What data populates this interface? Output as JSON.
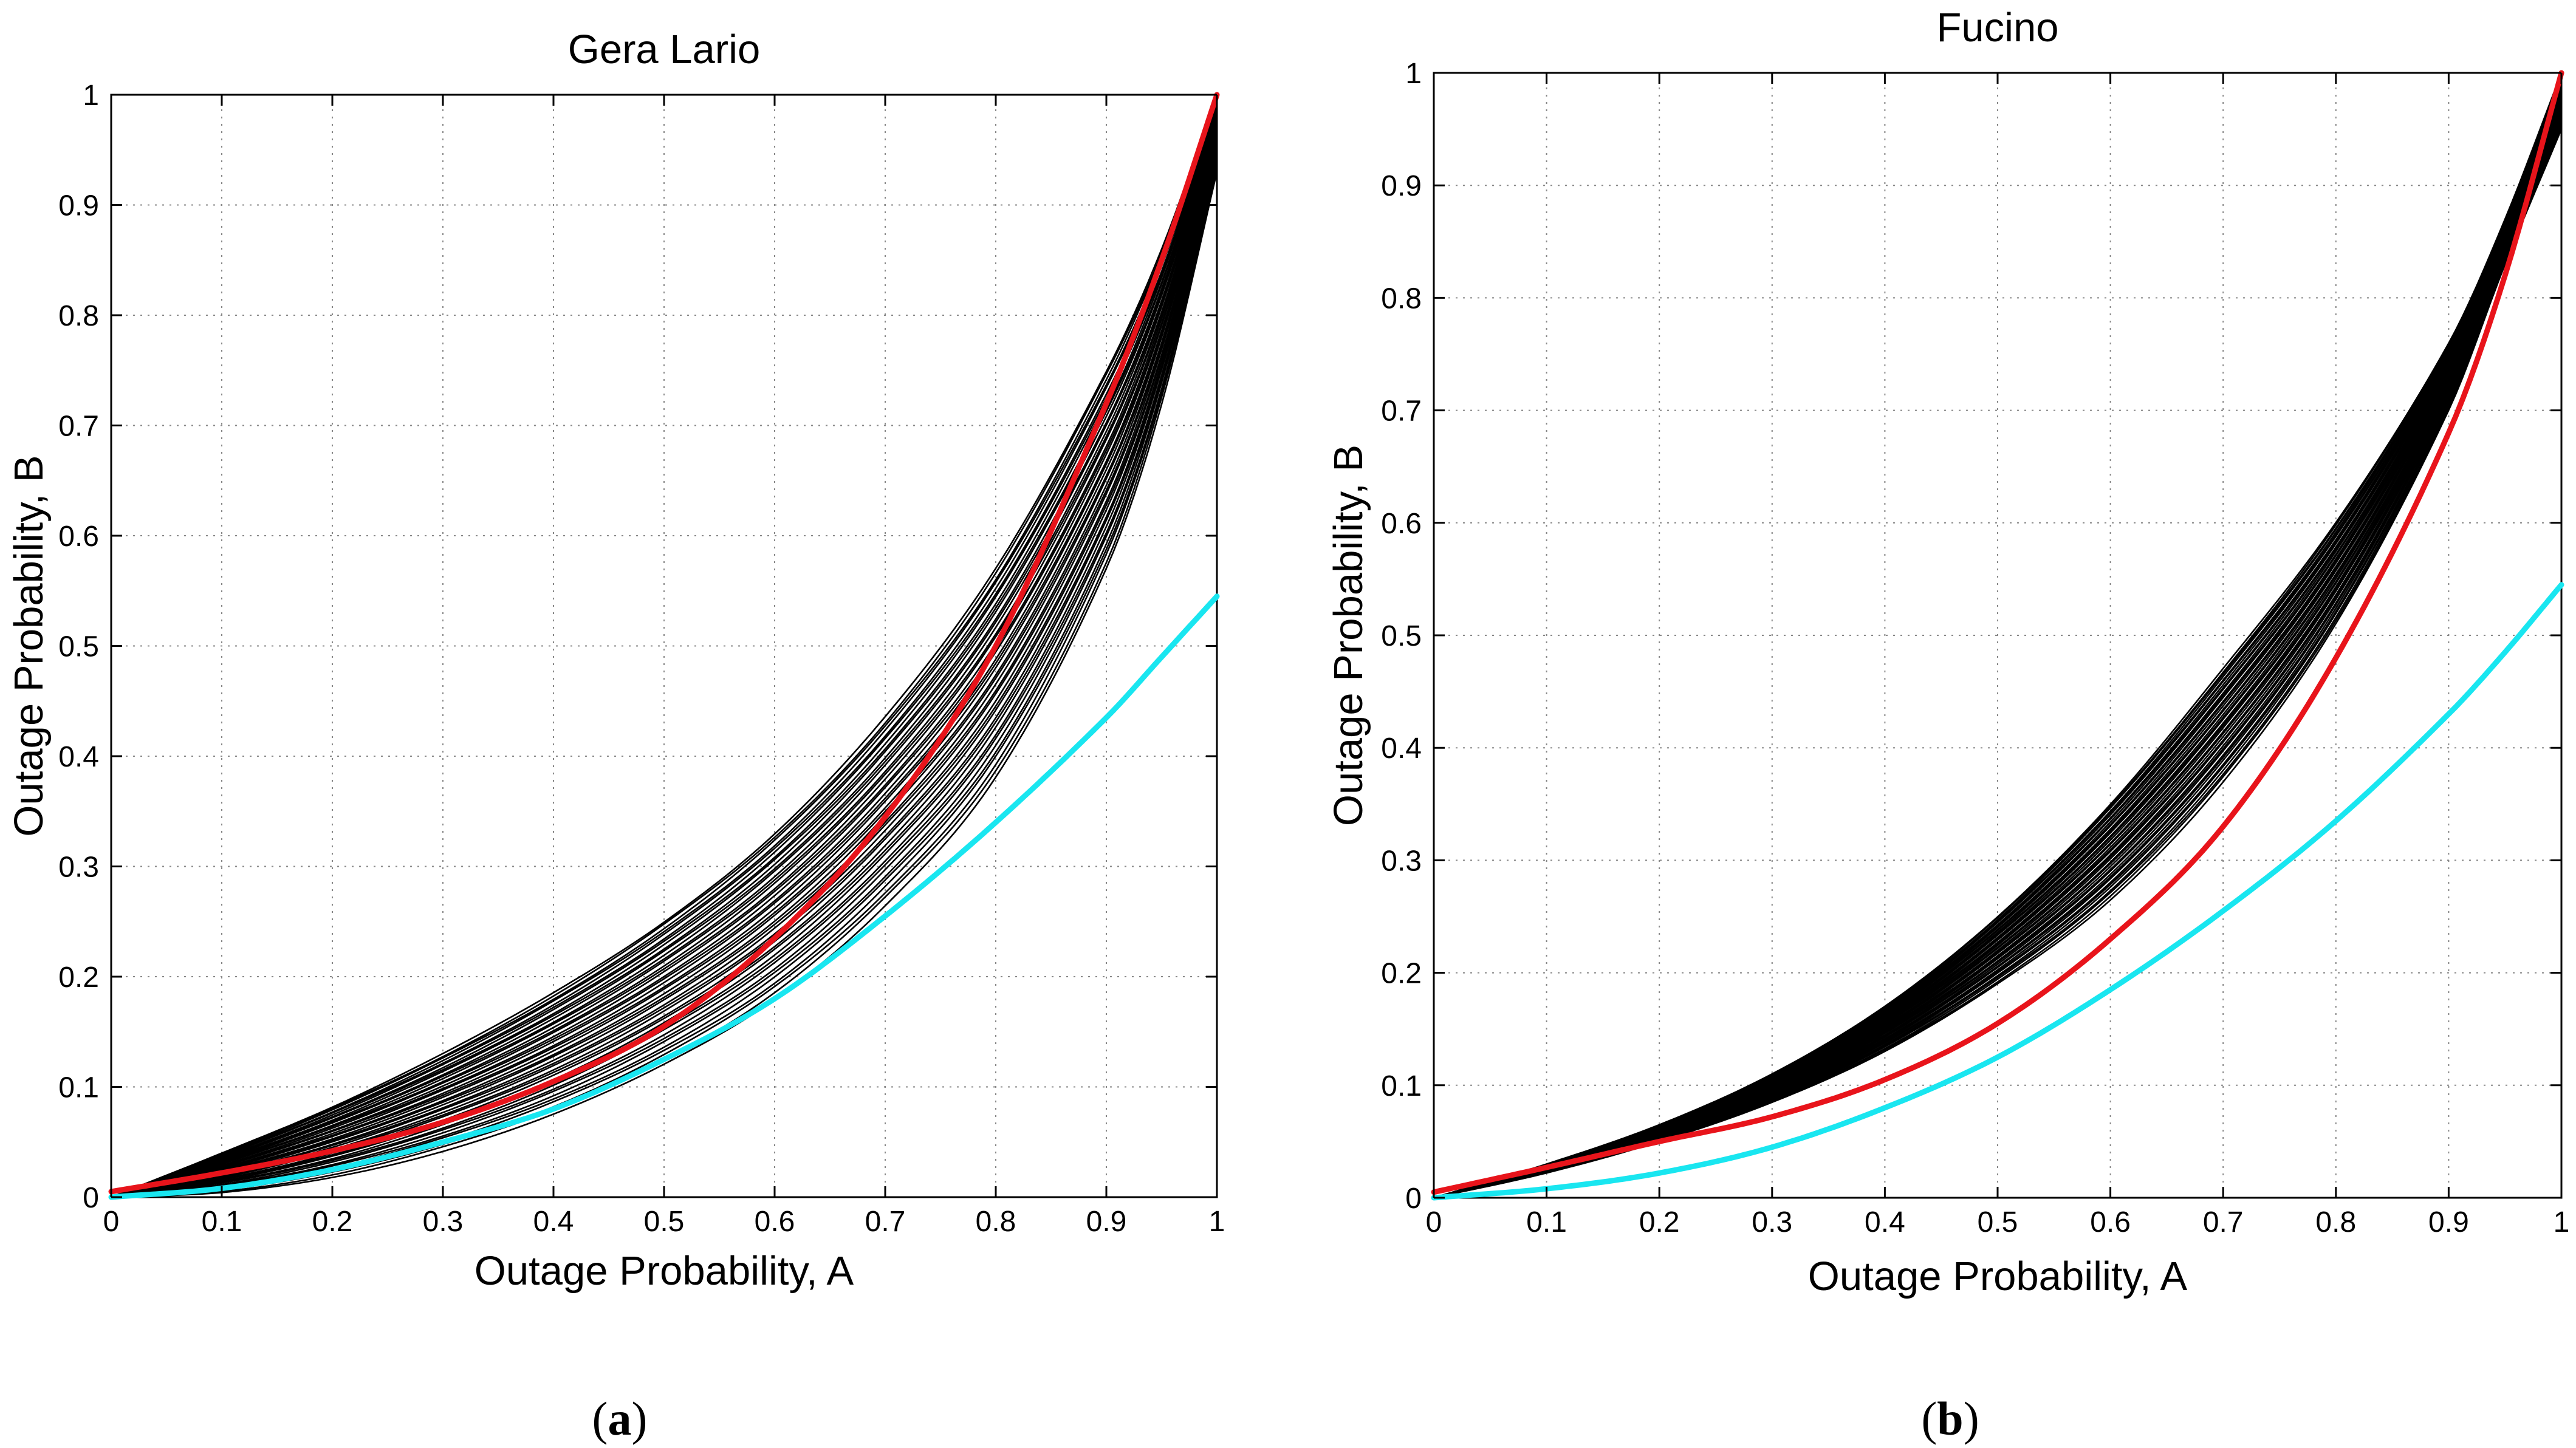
{
  "chart_data": [
    {
      "type": "line",
      "panel_label": "a",
      "title": "Gera Lario",
      "xlabel": "Outage Probability, A",
      "ylabel": "Outage Probability, B",
      "xlim": [
        0,
        1
      ],
      "ylim": [
        0,
        1
      ],
      "xticks": [
        "0",
        "0.1",
        "0.2",
        "0.3",
        "0.4",
        "0.5",
        "0.6",
        "0.7",
        "0.8",
        "0.9",
        "1"
      ],
      "yticks": [
        "0",
        "0.1",
        "0.2",
        "0.3",
        "0.4",
        "0.5",
        "0.6",
        "0.7",
        "0.8",
        "0.9",
        "1"
      ],
      "grid": true,
      "x": [
        0,
        0.1,
        0.2,
        0.3,
        0.4,
        0.5,
        0.6,
        0.7,
        0.8,
        0.9,
        0.95,
        1
      ],
      "series": [
        {
          "name": "red",
          "color": "#e8141b",
          "width": 9,
          "values": [
            0.005,
            0.022,
            0.042,
            0.068,
            0.105,
            0.155,
            0.235,
            0.345,
            0.5,
            0.72,
            0.85,
            1.0
          ]
        },
        {
          "name": "cyan",
          "color": "#19e6f0",
          "width": 9,
          "values": [
            0.0,
            0.008,
            0.025,
            0.05,
            0.08,
            0.125,
            0.18,
            0.255,
            0.34,
            0.435,
            0.49,
            0.545
          ]
        }
      ],
      "ensemble": {
        "name": "black ensemble",
        "color": "#000000",
        "lower": [
          0.0,
          0.004,
          0.018,
          0.042,
          0.075,
          0.12,
          0.18,
          0.265,
          0.38,
          0.57,
          0.72,
          0.93
        ],
        "upper": [
          0.0,
          0.04,
          0.082,
          0.13,
          0.185,
          0.25,
          0.33,
          0.435,
          0.57,
          0.75,
          0.86,
          1.0
        ],
        "count": 40
      }
    },
    {
      "type": "line",
      "panel_label": "b",
      "title": "Fucino",
      "xlabel": "Outage Probability, A",
      "ylabel": "Outage Probability, B",
      "xlim": [
        0,
        1
      ],
      "ylim": [
        0,
        1
      ],
      "xticks": [
        "0",
        "0.1",
        "0.2",
        "0.3",
        "0.4",
        "0.5",
        "0.6",
        "0.7",
        "0.8",
        "0.9",
        "1"
      ],
      "yticks": [
        "0",
        "0.1",
        "0.2",
        "0.3",
        "0.4",
        "0.5",
        "0.6",
        "0.7",
        "0.8",
        "0.9",
        "1"
      ],
      "grid": true,
      "x": [
        0,
        0.1,
        0.2,
        0.3,
        0.4,
        0.5,
        0.6,
        0.7,
        0.8,
        0.9,
        0.95,
        1
      ],
      "series": [
        {
          "name": "red",
          "color": "#e8141b",
          "width": 9,
          "values": [
            0.005,
            0.027,
            0.05,
            0.072,
            0.105,
            0.155,
            0.23,
            0.33,
            0.48,
            0.68,
            0.82,
            1.0
          ]
        },
        {
          "name": "cyan",
          "color": "#19e6f0",
          "width": 9,
          "values": [
            0.0,
            0.008,
            0.022,
            0.045,
            0.08,
            0.125,
            0.185,
            0.255,
            0.335,
            0.43,
            0.485,
            0.545
          ]
        }
      ],
      "ensemble": {
        "name": "black ensemble",
        "color": "#000000",
        "lower": [
          0.0,
          0.022,
          0.05,
          0.085,
          0.13,
          0.19,
          0.265,
          0.37,
          0.51,
          0.7,
          0.83,
          0.95
        ],
        "upper": [
          0.0,
          0.03,
          0.065,
          0.11,
          0.17,
          0.25,
          0.35,
          0.47,
          0.6,
          0.76,
          0.87,
          1.0
        ],
        "count": 40
      }
    }
  ]
}
